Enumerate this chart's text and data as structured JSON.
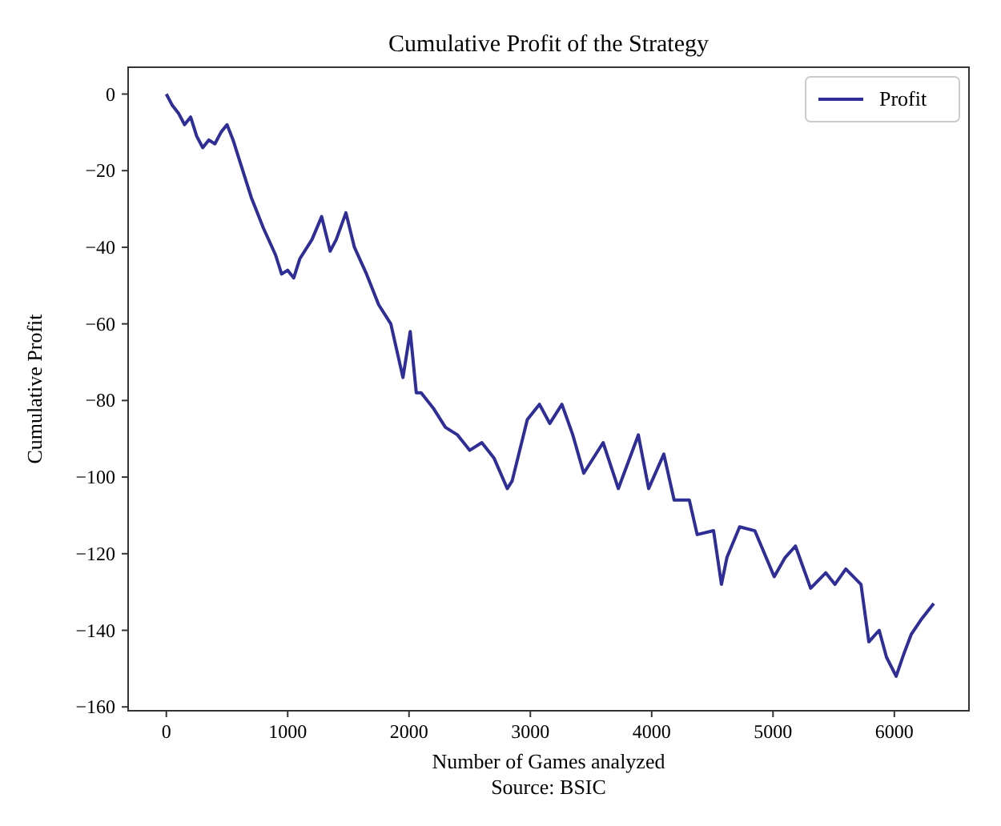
{
  "chart_data": {
    "type": "line",
    "title": "Cumulative Profit of the Strategy",
    "xlabel": "Number of Games analyzed",
    "ylabel": "Cumulative Profit",
    "annotations": [
      "Source: BSIC"
    ],
    "x": [
      0,
      50,
      100,
      150,
      200,
      250,
      300,
      350,
      400,
      450,
      500,
      550,
      600,
      700,
      800,
      900,
      950,
      1000,
      1050,
      1100,
      1200,
      1280,
      1350,
      1400,
      1480,
      1550,
      1650,
      1750,
      1850,
      1950,
      2010,
      2060,
      2100,
      2200,
      2300,
      2400,
      2500,
      2600,
      2700,
      2810,
      2850,
      2975,
      3075,
      3160,
      3260,
      3350,
      3440,
      3600,
      3725,
      3890,
      3975,
      4100,
      4185,
      4310,
      4375,
      4510,
      4575,
      4620,
      4725,
      4850,
      5010,
      5100,
      5185,
      5310,
      5435,
      5510,
      5600,
      5725,
      5790,
      5875,
      5935,
      6015,
      6080,
      6140,
      6225,
      6325
    ],
    "series": [
      {
        "name": "Profit",
        "color": "#2e2e96",
        "values": [
          0,
          -3,
          -5,
          -8,
          -6,
          -11,
          -14,
          -12,
          -13,
          -10,
          -8,
          -12,
          -17,
          -27,
          -35,
          -42,
          -47,
          -46,
          -48,
          -43,
          -38,
          -32,
          -41,
          -38,
          -31,
          -40,
          -47,
          -55,
          -60,
          -74,
          -62,
          -78,
          -78,
          -82,
          -87,
          -89,
          -93,
          -91,
          -95,
          -103,
          -101,
          -85,
          -81,
          -86,
          -81,
          -89,
          -99,
          -91,
          -103,
          -89,
          -103,
          -94,
          -106,
          -106,
          -115,
          -114,
          -128,
          -121,
          -113,
          -114,
          -126,
          -121,
          -118,
          -129,
          -125,
          -128,
          -124,
          -128,
          -143,
          -140,
          -147,
          -152,
          -146,
          -141,
          -137,
          -133
        ]
      }
    ],
    "xlim": [
      -315,
      6615
    ],
    "ylim": [
      -161,
      7
    ],
    "xticks": [
      0,
      1000,
      2000,
      3000,
      4000,
      5000,
      6000
    ],
    "yticks": [
      -160,
      -140,
      -120,
      -100,
      -80,
      -60,
      -40,
      -20,
      0
    ],
    "grid": false,
    "legend": "top right",
    "line_style": "solid"
  }
}
